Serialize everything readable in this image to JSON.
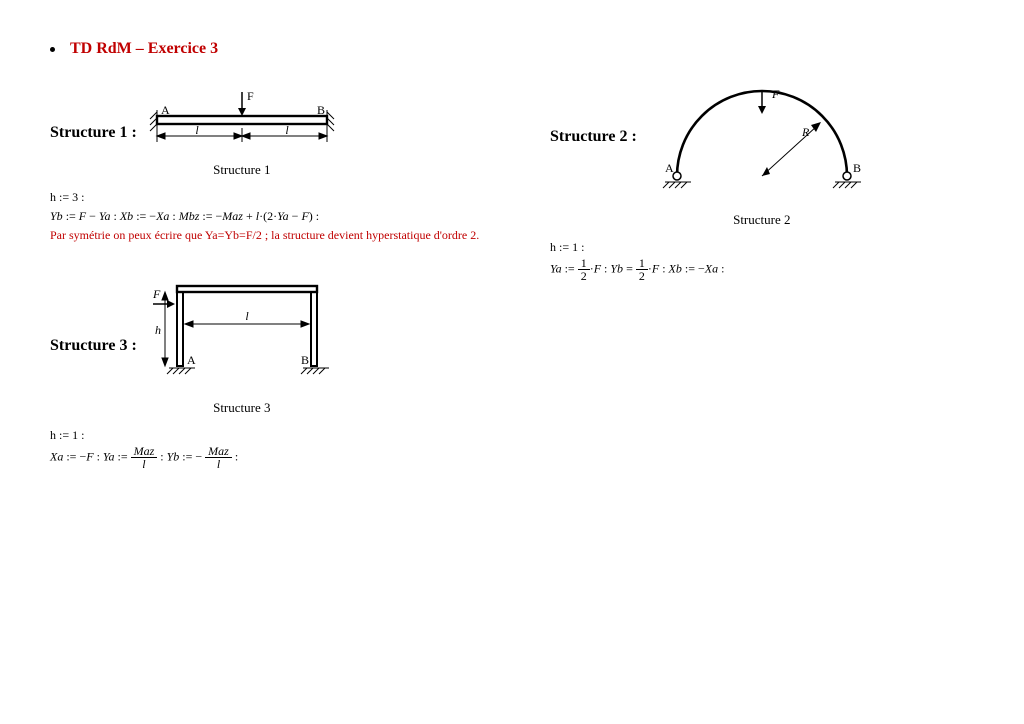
{
  "title": "TD RdM – Exercice 3",
  "title_color": "#c00000",
  "structures": {
    "s1": {
      "heading": "Structure 1 :",
      "caption": "Structure 1",
      "eq_line1": "h := 3 :",
      "eq_line2_html": "<span class='var'>Yb</span> := <span class='var'>F</span> − <span class='var'>Ya</span> : <span class='var'>Xb</span> := −<span class='var'>Xa</span> : <span class='var'>Mbz</span> := −<span class='var'>Maz</span> + <span class='var'>l</span>·(2·<span class='var'>Ya</span> − <span class='var'>F</span>) :",
      "note": "Par symétrie on peux écrire que Ya=Yb=F/2 ; la structure devient hyperstatique d'ordre 2."
    },
    "s2": {
      "heading": "Structure 2 :",
      "caption": "Structure 2",
      "eq_line1": "h := 1 :",
      "eq_line2_html": "<span class='var'>Ya</span> := <span class='frac'><span class='num'>1</span><span class='den'>2</span></span>·<span class='var'>F</span> : <span class='var'>Yb</span> = <span class='frac'><span class='num'>1</span><span class='den'>2</span></span>·<span class='var'>F</span> : <span class='var'>Xb</span> := −<span class='var'>Xa</span> :"
    },
    "s3": {
      "heading": "Structure 3 :",
      "caption": "Structure 3",
      "eq_line1": "h := 1 :",
      "eq_line2_html": "<span class='var'>Xa</span> := −<span class='var'>F</span> : <span class='var'>Ya</span> := <span class='frac'><span class='num'><span class='var'>Maz</span></span><span class='den'><span class='var'>l</span></span></span> : <span class='var'>Yb</span> := − <span class='frac'><span class='num'><span class='var'>Maz</span></span><span class='den'><span class='var'>l</span></span></span> :"
    }
  },
  "labels": {
    "F": "F",
    "A": "A",
    "B": "B",
    "l": "l",
    "h": "h",
    "R": "R"
  },
  "colors": {
    "stroke": "#000000",
    "hatch": "#000000",
    "text": "#000000"
  },
  "figure_style": {
    "stroke_width_main": 2.4,
    "stroke_width_thin": 1,
    "font_size_label": 12,
    "font_family": "Times New Roman, serif"
  }
}
